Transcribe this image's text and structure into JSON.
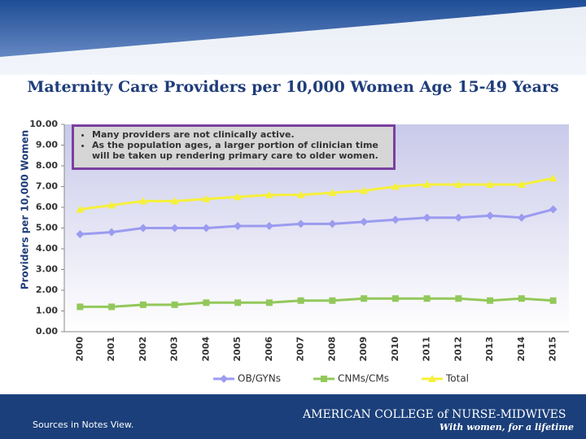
{
  "chart_data": {
    "type": "line",
    "title": "Maternity Care Providers per 10,000 Women Age 15-49 Years",
    "y_label": "Providers per 10,000 Women",
    "categories": [
      "2000",
      "2001",
      "2002",
      "2003",
      "2004",
      "2005",
      "2006",
      "2007",
      "2008",
      "2009",
      "2010",
      "2011",
      "2012",
      "2013",
      "2014",
      "2015"
    ],
    "series": [
      {
        "name": "OB/GYNs",
        "color": "#9b9bf0",
        "marker": "diamond",
        "values": [
          4.7,
          4.8,
          5.0,
          5.0,
          5.0,
          5.1,
          5.1,
          5.2,
          5.2,
          5.3,
          5.4,
          5.5,
          5.5,
          5.6,
          5.5,
          5.9
        ]
      },
      {
        "name": "CNMs/CMs",
        "color": "#92c85a",
        "marker": "square",
        "values": [
          1.2,
          1.2,
          1.3,
          1.3,
          1.4,
          1.4,
          1.4,
          1.5,
          1.5,
          1.6,
          1.6,
          1.6,
          1.6,
          1.5,
          1.6,
          1.5
        ]
      },
      {
        "name": "Total",
        "color": "#f5f03a",
        "marker": "triangle",
        "values": [
          5.9,
          6.1,
          6.3,
          6.3,
          6.4,
          6.5,
          6.6,
          6.6,
          6.7,
          6.8,
          7.0,
          7.1,
          7.1,
          7.1,
          7.1,
          7.4
        ]
      }
    ],
    "ylim": [
      0,
      10
    ],
    "yticks": [
      {
        "value": 0,
        "label": "0.00"
      },
      {
        "value": 1,
        "label": "1.00"
      },
      {
        "value": 2,
        "label": "2.00"
      },
      {
        "value": 3,
        "label": "3.00"
      },
      {
        "value": 4,
        "label": "4.00"
      },
      {
        "value": 5,
        "label": "5.00"
      },
      {
        "value": 6,
        "label": "6.00"
      },
      {
        "value": 7,
        "label": "7.00"
      },
      {
        "value": 8,
        "label": "8.00"
      },
      {
        "value": 9,
        "label": "9.00"
      },
      {
        "value": 10,
        "label": "10.00"
      }
    ],
    "grid": false,
    "legend": "bottom",
    "annotations": [
      "Many providers are not clinically active.",
      "As the population ages, a larger portion of clinician time will be taken up rendering primary care to older women."
    ]
  },
  "footer": {
    "note": "Sources in Notes View.",
    "logo": "AMERICAN COLLEGE of NURSE-MIDWIVES",
    "tagline": "With women, for a lifetime"
  }
}
